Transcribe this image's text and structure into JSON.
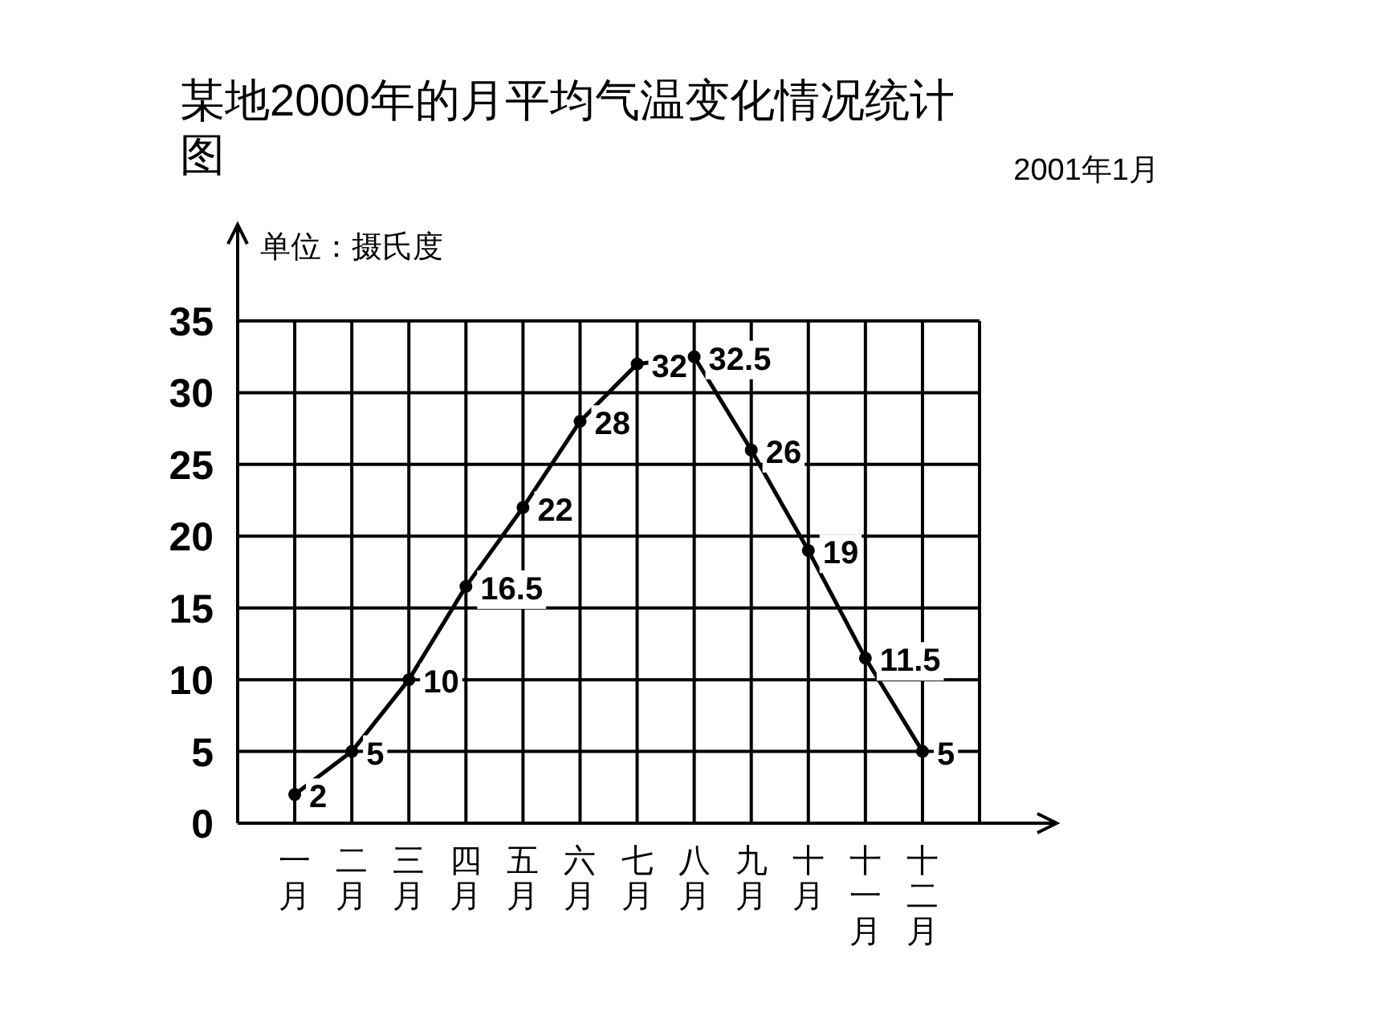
{
  "chart_data": {
    "type": "line",
    "title": "某地2000年的月平均气温变化情况统计图",
    "subtitle": "2001年1月",
    "ylabel": "单位：摄氏度",
    "categories": [
      "一月",
      "二月",
      "三月",
      "四月",
      "五月",
      "六月",
      "七月",
      "八月",
      "九月",
      "十月",
      "十一月",
      "十二月"
    ],
    "series": [
      {
        "color": "#000000",
        "values": [
          2,
          5,
          10,
          16.5,
          22,
          28,
          32,
          32.5,
          26,
          19,
          11.5,
          5
        ]
      }
    ],
    "ylim": [
      0,
      35
    ],
    "yticks": [
      0,
      5,
      10,
      15,
      20,
      25,
      30,
      35
    ],
    "grid": true,
    "marker": "circle",
    "line_style": "solid",
    "data_labels": true
  }
}
